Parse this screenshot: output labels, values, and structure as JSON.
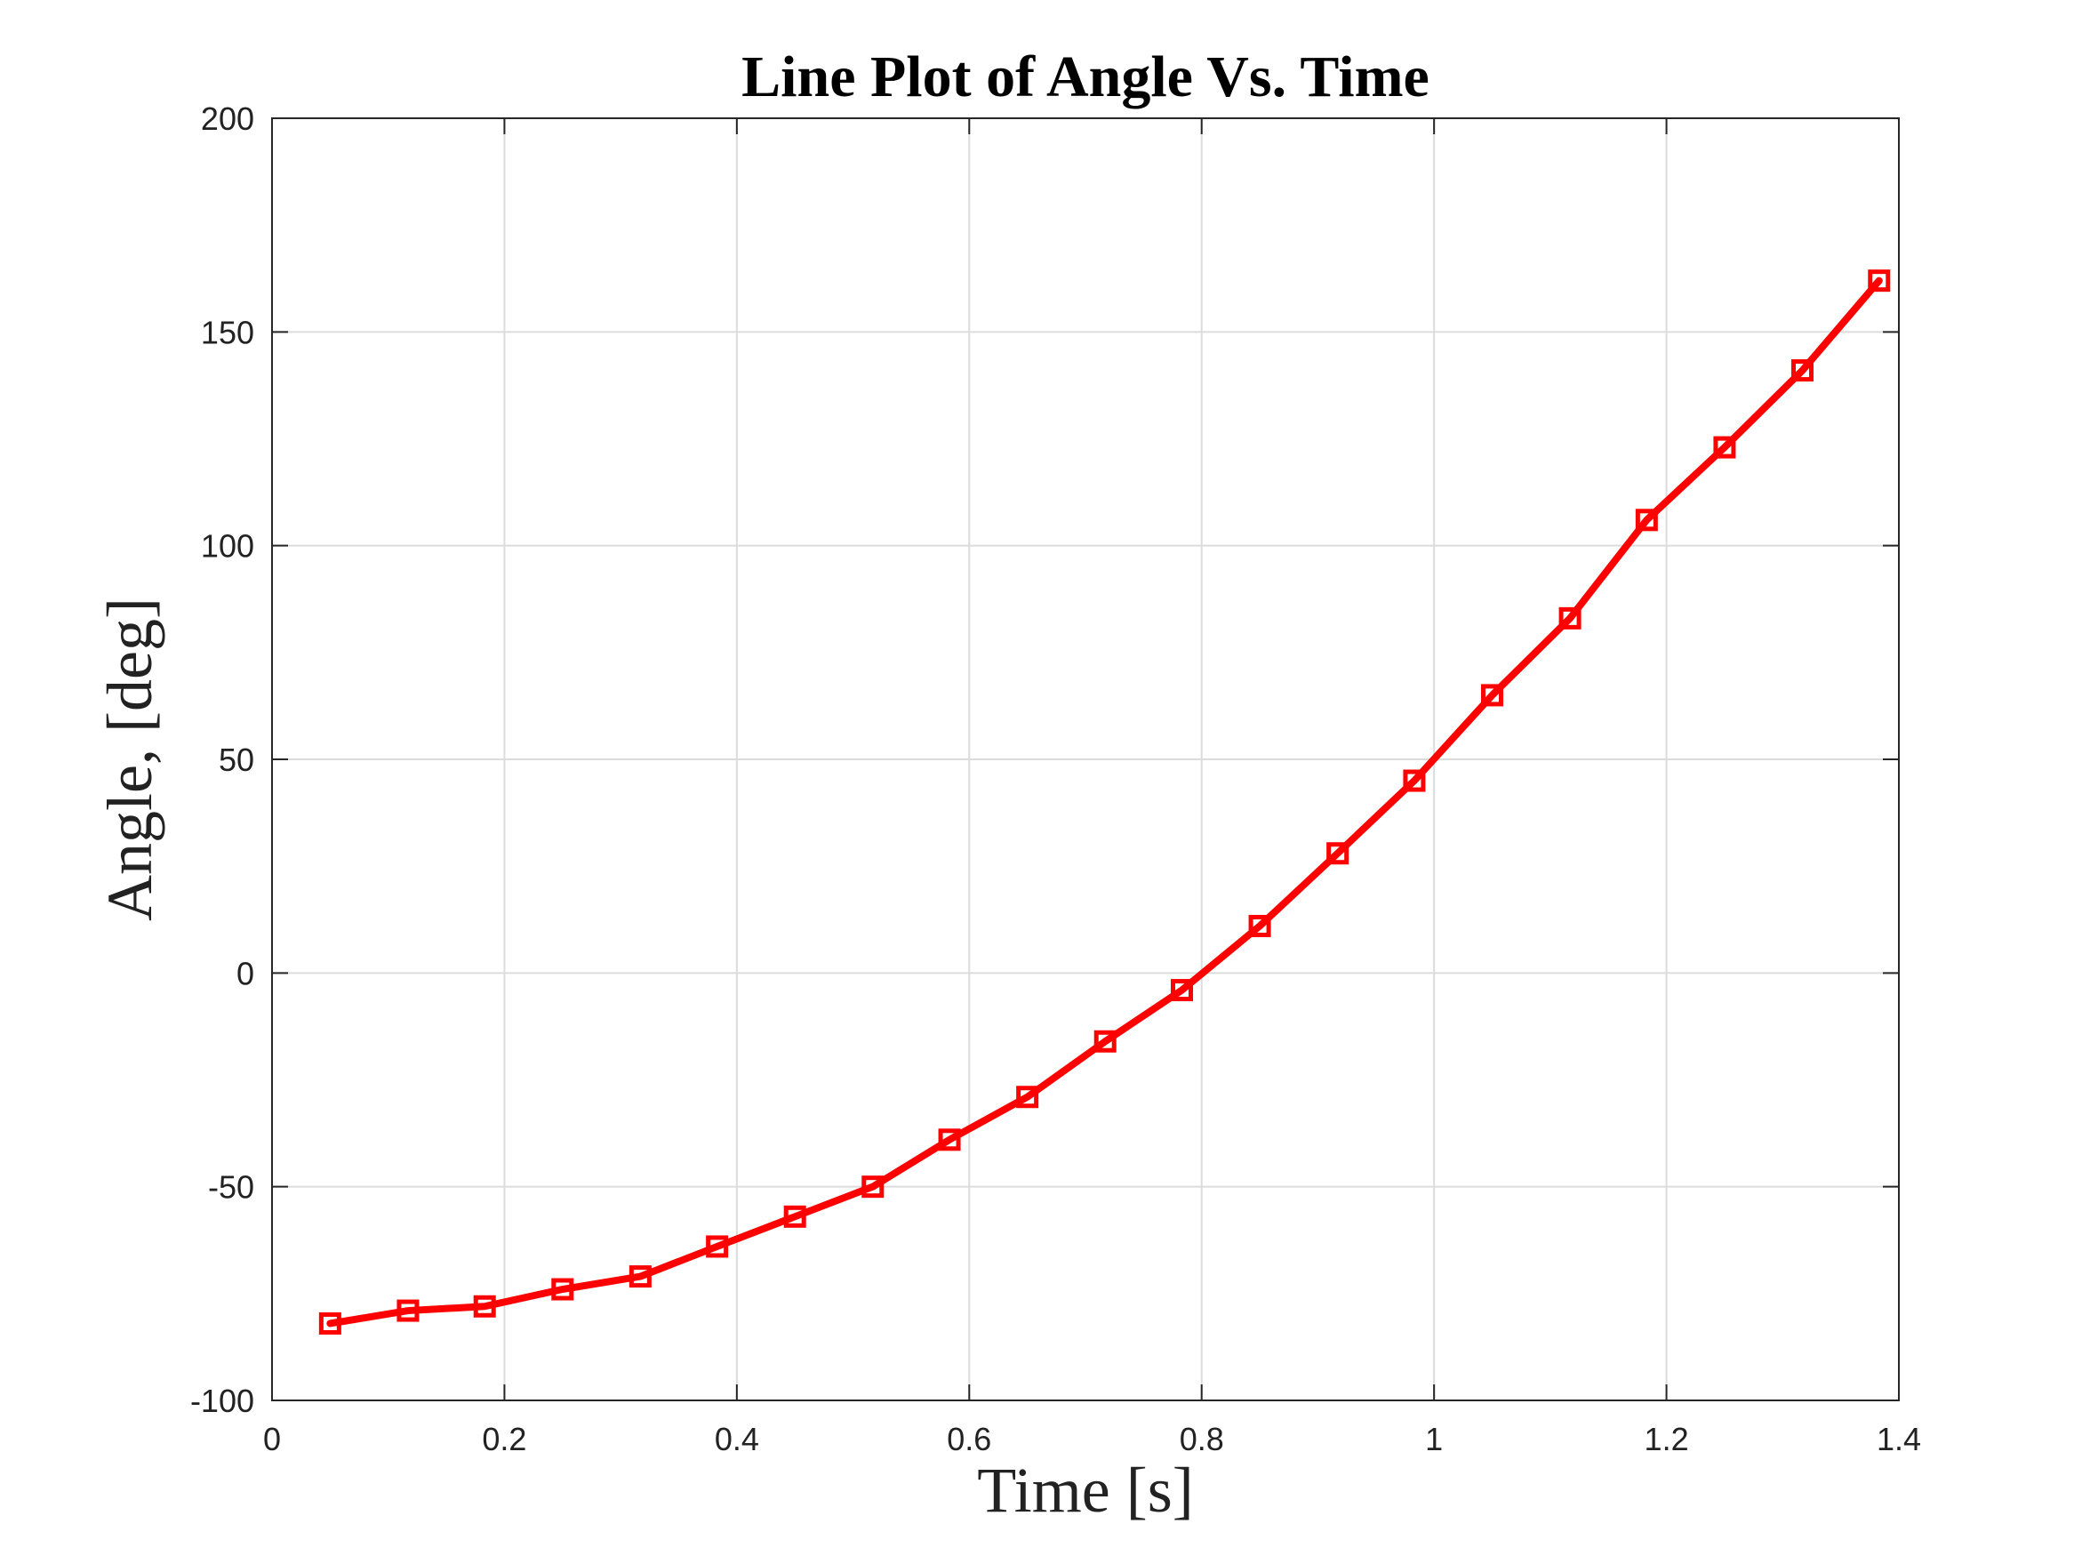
{
  "chart_data": {
    "type": "line",
    "title": "Line Plot of Angle Vs. Time",
    "xlabel": "Time [s]",
    "ylabel": "Angle, [deg]",
    "xlim": [
      0,
      1.4
    ],
    "ylim": [
      -100,
      200
    ],
    "xticks": [
      0,
      0.2,
      0.4,
      0.6,
      0.8,
      1.0,
      1.2,
      1.4
    ],
    "xtick_labels": [
      "0",
      "0.2",
      "0.4",
      "0.6",
      "0.8",
      "1",
      "1.2",
      "1.4"
    ],
    "yticks": [
      -100,
      -50,
      0,
      50,
      100,
      150,
      200
    ],
    "ytick_labels": [
      "-100",
      "-50",
      "0",
      "50",
      "100",
      "150",
      "200"
    ],
    "grid": true,
    "series": [
      {
        "color": "#ff0000",
        "marker": "square",
        "x": [
          0.05,
          0.117,
          0.183,
          0.25,
          0.317,
          0.383,
          0.45,
          0.517,
          0.583,
          0.65,
          0.717,
          0.783,
          0.85,
          0.917,
          0.983,
          1.05,
          1.117,
          1.183,
          1.25,
          1.317,
          1.383
        ],
        "y": [
          -82,
          -79,
          -78,
          -74,
          -71,
          -64,
          -57,
          -50,
          -39,
          -29,
          -16,
          -4,
          11,
          28,
          45,
          65,
          83,
          106,
          123,
          141,
          162
        ]
      }
    ]
  }
}
